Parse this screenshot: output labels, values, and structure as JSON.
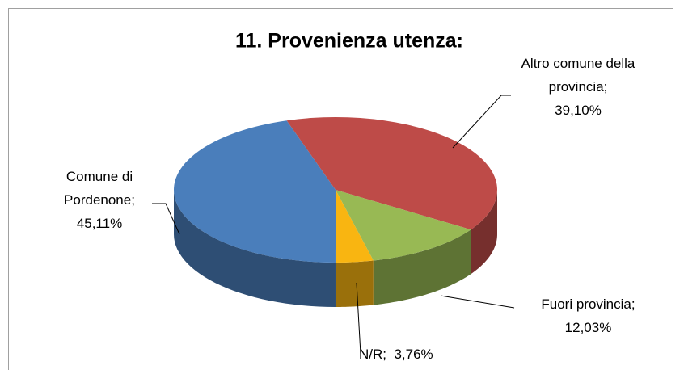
{
  "chart_data": {
    "type": "pie",
    "title": "11. Provenienza utenza:",
    "categories": [
      "Altro comune della provincia",
      "Fuori provincia",
      "N/R",
      "Comune di Pordenone"
    ],
    "values": [
      39.1,
      12.03,
      3.76,
      45.11
    ],
    "value_labels": [
      "39,10%",
      "12,03%",
      "3,76%",
      "45,11%"
    ],
    "separator": ";",
    "colors": [
      "#be4b48",
      "#98b954",
      "#f9b511",
      "#4a7ebb"
    ],
    "three_d": true
  }
}
